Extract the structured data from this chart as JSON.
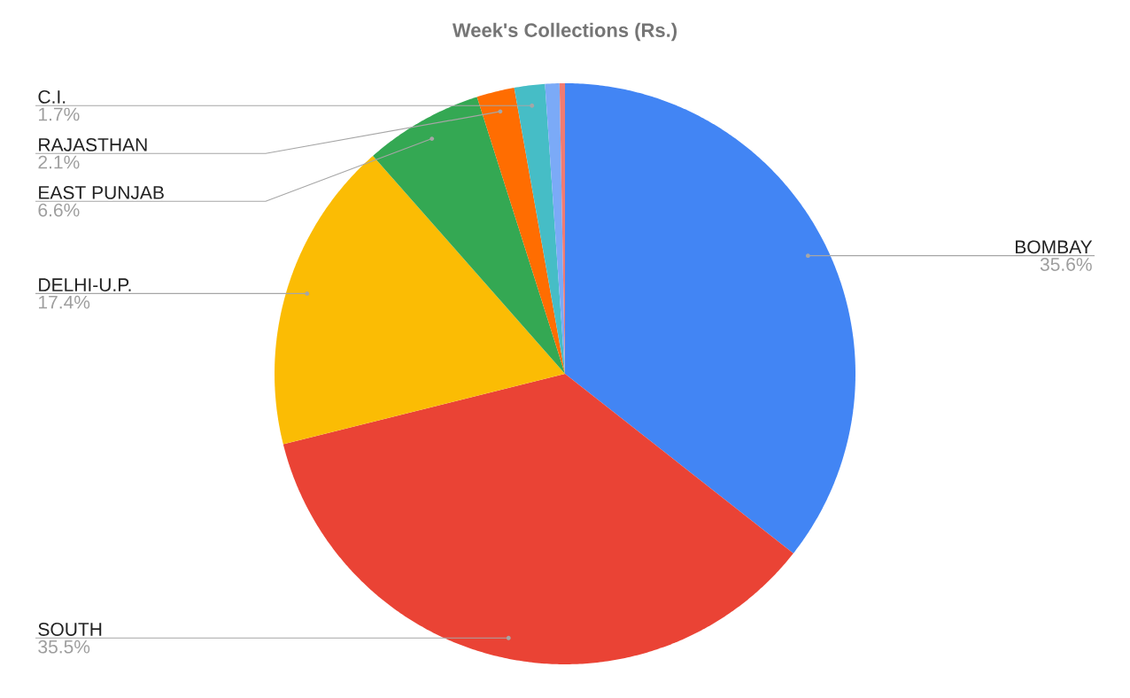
{
  "chart_data": {
    "type": "pie",
    "title": "Week's Collections (Rs.)",
    "categories": [
      "BOMBAY",
      "SOUTH",
      "DELHI-U.P.",
      "EAST PUNJAB",
      "RAJASTHAN",
      "C.I.",
      null,
      null
    ],
    "values": [
      35.6,
      35.5,
      17.4,
      6.6,
      2.1,
      1.7,
      0.8,
      0.3
    ],
    "value_labels": [
      "35.6%",
      "35.5%",
      "17.4%",
      "6.6%",
      "2.1%",
      "1.7%",
      null,
      null
    ],
    "colors": [
      "#4285f4",
      "#ea4335",
      "#fbbc04",
      "#34a853",
      "#ff6d01",
      "#46bdc6",
      "#7baaf7",
      "#f07b72"
    ]
  }
}
